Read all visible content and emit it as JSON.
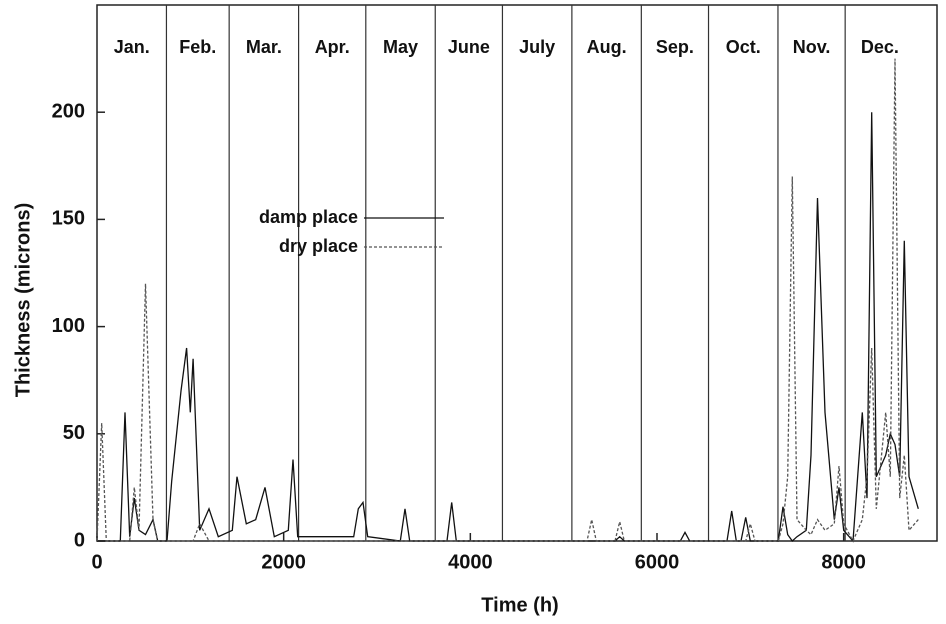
{
  "chart_data": {
    "type": "line",
    "xlabel": "Time (h)",
    "ylabel": "Thickness (microns)",
    "xlim": [
      0,
      9000
    ],
    "xticks": [
      0,
      2000,
      4000,
      6000,
      8000
    ],
    "ylim": [
      0,
      250
    ],
    "yticks": [
      0,
      50,
      100,
      150,
      200
    ],
    "months": [
      "Jan.",
      "Feb.",
      "Mar.",
      "Apr.",
      "May",
      "June",
      "July",
      "Aug.",
      "Sep.",
      "Oct.",
      "Nov.",
      "Dec."
    ],
    "month_boundaries": [
      744,
      1416,
      2160,
      2880,
      3624,
      4344,
      5088,
      5832,
      6552,
      7296,
      8016
    ],
    "month_end": 8760,
    "x": [
      0,
      50,
      100,
      250,
      300,
      350,
      400,
      450,
      520,
      600,
      650,
      750,
      800,
      900,
      960,
      1000,
      1030,
      1100,
      1200,
      1300,
      1450,
      1500,
      1600,
      1700,
      1800,
      1900,
      2050,
      2100,
      2150,
      2750,
      2800,
      2850,
      2900,
      3250,
      3300,
      3350,
      3750,
      3800,
      3850,
      5250,
      5300,
      5350,
      5550,
      5600,
      5650,
      6250,
      6300,
      6350,
      6750,
      6800,
      6850,
      6900,
      6950,
      7000,
      7050,
      7300,
      7350,
      7400,
      7450,
      7500,
      7600,
      7650,
      7720,
      7800,
      7900,
      7950,
      8000,
      8100,
      8200,
      8250,
      8300,
      8350,
      8450,
      8500,
      8550,
      8600,
      8650,
      8700,
      8800
    ],
    "series": [
      {
        "name": "damp place",
        "color": "#111111",
        "dash": false,
        "values": [
          0,
          0,
          0,
          0,
          60,
          2,
          20,
          5,
          3,
          10,
          0,
          0,
          28,
          70,
          90,
          60,
          85,
          5,
          15,
          2,
          5,
          30,
          8,
          10,
          25,
          2,
          5,
          38,
          2,
          2,
          15,
          18,
          2,
          0,
          15,
          0,
          0,
          18,
          0,
          0,
          0,
          0,
          0,
          2,
          0,
          0,
          4,
          0,
          0,
          14,
          0,
          0,
          11,
          0,
          0,
          0,
          16,
          3,
          0,
          2,
          5,
          40,
          160,
          60,
          10,
          25,
          5,
          0,
          60,
          20,
          200,
          30,
          40,
          50,
          45,
          30,
          140,
          30,
          15
        ]
      },
      {
        "name": "dry place",
        "color": "#555555",
        "dash": true,
        "values": [
          0,
          55,
          0,
          0,
          0,
          0,
          25,
          5,
          120,
          10,
          0,
          0,
          0,
          0,
          0,
          0,
          0,
          8,
          0,
          0,
          0,
          0,
          0,
          0,
          0,
          0,
          0,
          0,
          0,
          0,
          0,
          0,
          0,
          0,
          0,
          0,
          0,
          0,
          0,
          0,
          10,
          0,
          0,
          9,
          0,
          0,
          0,
          0,
          0,
          0,
          0,
          0,
          0,
          8,
          0,
          0,
          8,
          30,
          170,
          10,
          5,
          3,
          10,
          5,
          8,
          35,
          8,
          0,
          10,
          30,
          90,
          15,
          60,
          30,
          225,
          20,
          40,
          5,
          10
        ]
      }
    ]
  }
}
